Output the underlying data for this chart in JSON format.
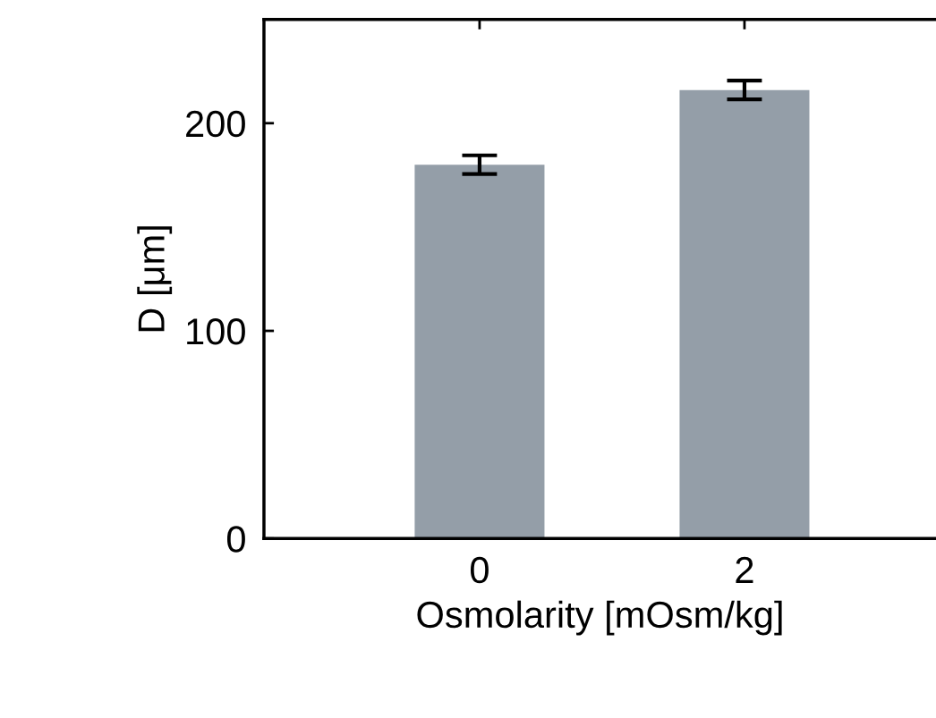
{
  "chart_data": {
    "type": "bar",
    "xlabel": "Osmolarity [mOsm/kg]",
    "ylabel": "D [μm]",
    "categories": [
      "0",
      "2"
    ],
    "values": [
      180,
      216
    ],
    "errors": [
      4.5,
      4.5
    ],
    "color": "#949ea8",
    "ylim": [
      0,
      250
    ],
    "yticks": [
      0,
      100,
      200
    ],
    "grid": false,
    "legend": false
  }
}
